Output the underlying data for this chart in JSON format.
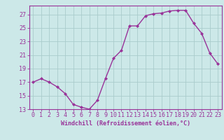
{
  "x": [
    0,
    1,
    2,
    3,
    4,
    5,
    6,
    7,
    8,
    9,
    10,
    11,
    12,
    13,
    14,
    15,
    16,
    17,
    18,
    19,
    20,
    21,
    22,
    23
  ],
  "y": [
    17,
    17.5,
    17,
    16.3,
    15.3,
    13.7,
    13.3,
    13,
    14.3,
    17.5,
    20.5,
    21.7,
    25.3,
    25.3,
    26.8,
    27.1,
    27.2,
    27.5,
    27.6,
    27.6,
    25.7,
    24.2,
    21.3,
    19.7
  ],
  "line_color": "#993399",
  "marker_color": "#993399",
  "bg_color": "#cce8e8",
  "grid_color": "#aacccc",
  "axis_color": "#993399",
  "xlabel": "Windchill (Refroidissement éolien,°C)",
  "ylim": [
    13,
    28
  ],
  "xlim": [
    -0.5,
    23.5
  ],
  "yticks": [
    13,
    15,
    17,
    19,
    21,
    23,
    25,
    27
  ],
  "xticks": [
    0,
    1,
    2,
    3,
    4,
    5,
    6,
    7,
    8,
    9,
    10,
    11,
    12,
    13,
    14,
    15,
    16,
    17,
    18,
    19,
    20,
    21,
    22,
    23
  ],
  "xtick_labels": [
    "0",
    "1",
    "2",
    "3",
    "4",
    "5",
    "6",
    "7",
    "8",
    "9",
    "10",
    "11",
    "12",
    "13",
    "14",
    "15",
    "16",
    "17",
    "18",
    "19",
    "20",
    "21",
    "22",
    "23"
  ],
  "font_color": "#993399",
  "xlabel_fontsize": 6,
  "tick_fontsize": 6
}
